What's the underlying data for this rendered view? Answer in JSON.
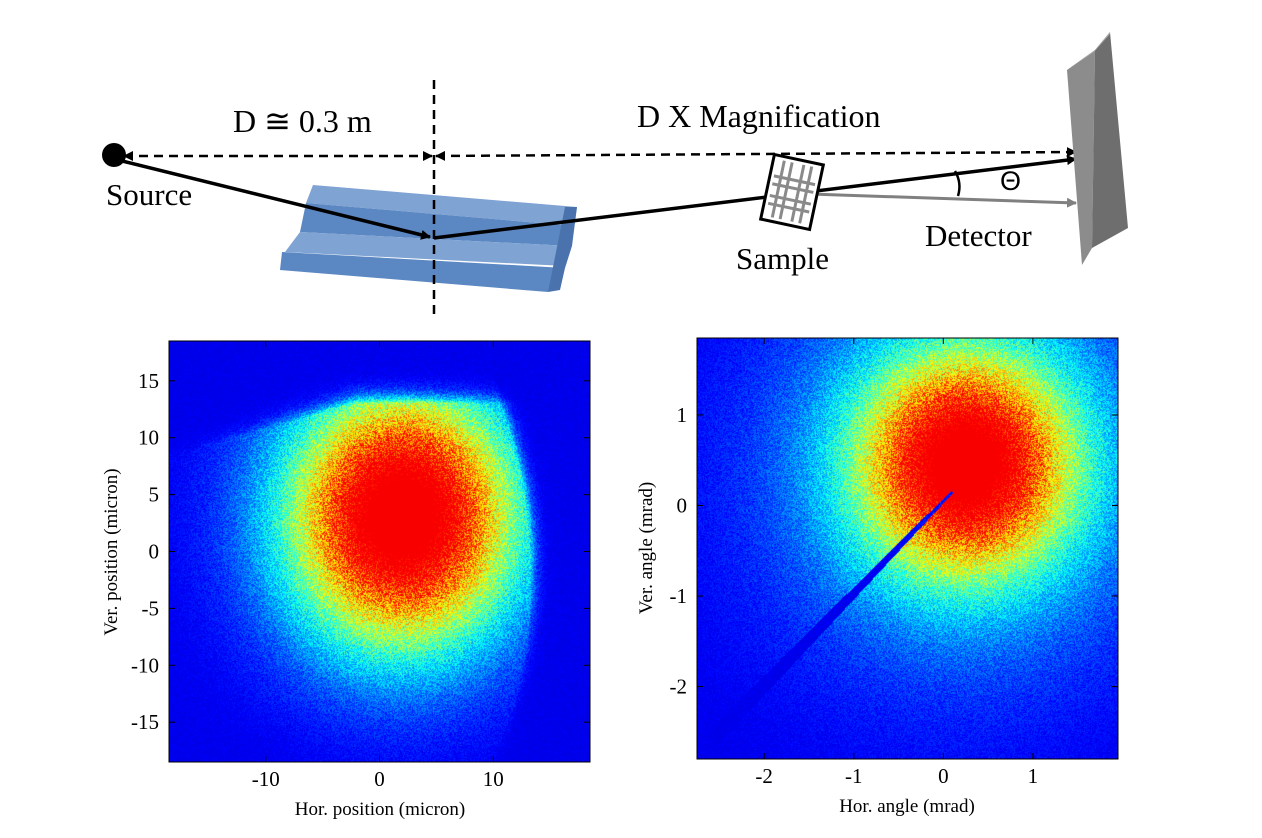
{
  "diagram": {
    "distance_label": "D ≅ 0.3 m",
    "magnification_label": "D X Magnification",
    "source_label": "Source",
    "sample_label": "Sample",
    "detector_label": "Detector",
    "angle_label": "Θ",
    "colors": {
      "mirror": "#5b87c2",
      "mirror_top": "#7fa3d3",
      "detector": "#808080",
      "beam": "#000000",
      "scattered_beam": "#808080"
    }
  },
  "chart_data": [
    {
      "type": "heatmap",
      "title": "",
      "xlabel": "Hor. position (micron)",
      "ylabel": "Ver. position (micron)",
      "xlim": [
        -18.5,
        18.5
      ],
      "ylim": [
        -18.5,
        18.5
      ],
      "xticks": [
        -10,
        0,
        10
      ],
      "yticks": [
        15,
        10,
        5,
        0,
        -5,
        -10,
        -15
      ],
      "colormap": "jet",
      "peak_center": [
        2,
        3
      ],
      "description_values": {
        "core_sigma_x": 5.2,
        "core_sigma_y": 6.2
      }
    },
    {
      "type": "heatmap",
      "title": "",
      "xlabel": "Hor. angle (mrad)",
      "ylabel": "Ver. angle (mrad)",
      "xlim": [
        -2.75,
        1.95
      ],
      "ylim": [
        -2.8,
        1.85
      ],
      "xticks": [
        -2,
        -1,
        0,
        1
      ],
      "yticks": [
        1,
        0,
        -1,
        -2
      ],
      "colormap": "jet",
      "peak_center": [
        0.25,
        0.45
      ],
      "shadow_line": {
        "from": [
          0.1,
          0.15
        ],
        "to": [
          -2.6,
          -2.6
        ]
      }
    }
  ]
}
